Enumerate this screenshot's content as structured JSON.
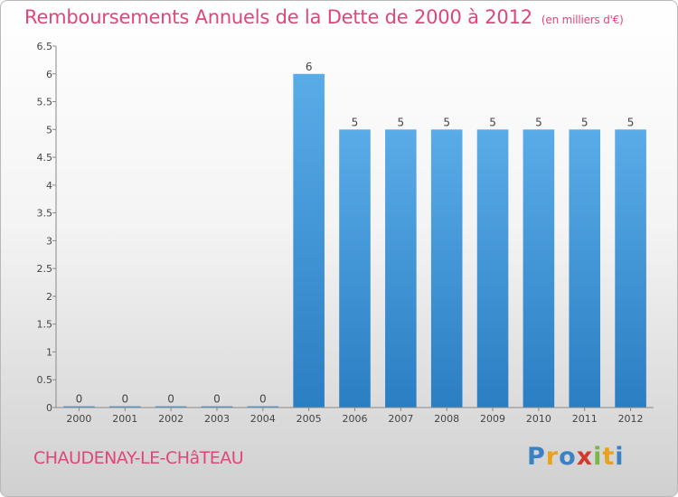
{
  "header": {
    "title": "Remboursements Annuels de la Dette de 2000 à 2012",
    "unit": "(en milliers d'€)"
  },
  "footer": {
    "commune": "CHAUDENAY-LE-CHâTEAU",
    "logo": {
      "letters": [
        "P",
        "r",
        "o",
        "x",
        "i",
        "t",
        "i"
      ],
      "colors": [
        "#3b82c4",
        "#e8a21c",
        "#3b82c4",
        "#d23a2e",
        "#7ab648",
        "#e8a21c",
        "#3b82c4"
      ]
    }
  },
  "chart_data": {
    "type": "bar",
    "categories": [
      "2000",
      "2001",
      "2002",
      "2003",
      "2004",
      "2005",
      "2006",
      "2007",
      "2008",
      "2009",
      "2010",
      "2011",
      "2012"
    ],
    "values": [
      0,
      0,
      0,
      0,
      0,
      6,
      5,
      5,
      5,
      5,
      5,
      5,
      5
    ],
    "data_labels": [
      "0",
      "0",
      "0",
      "0",
      "0",
      "6",
      "5",
      "5",
      "5",
      "5",
      "5",
      "5",
      "5"
    ],
    "title": "Remboursements Annuels de la Dette de 2000 à 2012",
    "ylim": [
      0,
      6.5
    ],
    "yticks": [
      0,
      0.5,
      1,
      1.5,
      2,
      2.5,
      3,
      3.5,
      4,
      4.5,
      5,
      5.5,
      6,
      6.5
    ],
    "ytick_labels": [
      "0",
      "0.5",
      "1",
      "1.5",
      "2",
      "2.5",
      "3",
      "3.5",
      "4",
      "4.5",
      "5",
      "5.5",
      "6",
      "6.5"
    ],
    "bar_color_top": "#5aace8",
    "bar_color_bottom": "#2a7ec2",
    "grid": false
  }
}
